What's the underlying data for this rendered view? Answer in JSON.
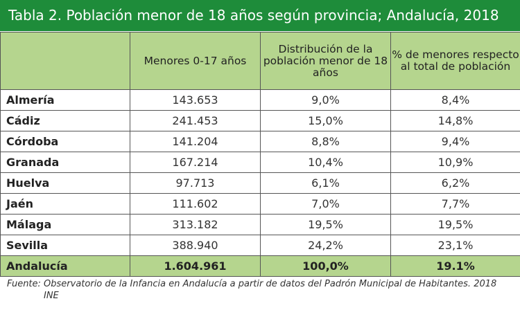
{
  "title": "Tabla 2. Población menor de 18 años según provincia; Andalucía, 2018",
  "headers": [
    "",
    "Menores 0-17 años",
    "Distribución de la población menor de 18 años",
    "% de menores respecto al total de población"
  ],
  "rows": [
    {
      "provincia": "Almería",
      "menores": "143.653",
      "distribucion": "9,0%",
      "porcentaje": "8,4%"
    },
    {
      "provincia": "Cádiz",
      "menores": "241.453",
      "distribucion": "15,0%",
      "porcentaje": "14,8%"
    },
    {
      "provincia": "Córdoba",
      "menores": "141.204",
      "distribucion": "8,8%",
      "porcentaje": "9,4%"
    },
    {
      "provincia": "Granada",
      "menores": "167.214",
      "distribucion": "10,4%",
      "porcentaje": "10,9%"
    },
    {
      "provincia": "Huelva",
      "menores": "97.713",
      "distribucion": "6,1%",
      "porcentaje": "6,2%"
    },
    {
      "provincia": "Jaén",
      "menores": "111.602",
      "distribucion": "7,0%",
      "porcentaje": "7,7%"
    },
    {
      "provincia": "Málaga",
      "menores": "313.182",
      "distribucion": "19,5%",
      "porcentaje": "19,5%"
    },
    {
      "provincia": "Sevilla",
      "menores": "388.940",
      "distribucion": "24,2%",
      "porcentaje": "23,1%"
    }
  ],
  "total": {
    "provincia": "Andalucía",
    "menores": "1.604.961",
    "distribucion": "100,0%",
    "porcentaje": "19.1%"
  },
  "source": {
    "line1": "Fuente: Observatorio de la Infancia en Andalucía a partir de datos del Padrón Municipal de Habitantes. 2018",
    "line2": "INE"
  },
  "colors": {
    "title_bg": "#1e8c3a",
    "header_bg": "#b5d58e",
    "total_bg": "#b5d58e"
  }
}
